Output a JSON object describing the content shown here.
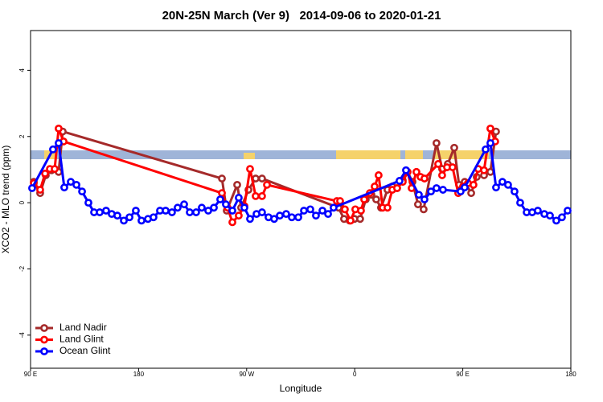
{
  "chart_data": {
    "type": "line",
    "title": "20N-25N March (Ver 9)   2014-09-06 to 2020-01-21",
    "x_label": "Longitude",
    "y_label": "XCO2 - MLO trend (ppm)",
    "xlim": [
      90,
      540
    ],
    "xticks": [
      {
        "value": 90,
        "label": "90 E"
      },
      180,
      {
        "value": 270,
        "label": "90 W"
      },
      {
        "value": 360,
        "label": "0"
      },
      {
        "value": 450,
        "label": "90 E"
      },
      {
        "value": 540,
        "label": "180"
      }
    ],
    "ylim": [
      -5,
      5.2
    ],
    "yticks": [
      -4,
      -2,
      0,
      2,
      4
    ],
    "legend": "bottom-left",
    "series": [
      {
        "name": "Land Nadir",
        "color": "#a52a2a",
        "x": [
          92.7,
          98.0,
          102.7,
          107.4,
          113.4,
          116.8,
          249.4,
          253.4,
          262.1,
          265.4,
          271.5,
          277.5,
          282.8,
          346.5,
          351.1,
          355.8,
          359.8,
          364.5,
          369.2,
          373.9,
          377.9,
          381.9,
          387.3,
          391.3,
          395.3,
          400.0,
          404.0,
          408.1,
          412.7,
          417.4,
          428.1,
          432.8,
          437.5,
          442.9,
          446.9,
          451.6,
          457.0,
          461.6,
          467.7,
          473.0,
          477.7
        ],
        "values": [
          0.63,
          0.29,
          0.83,
          0.98,
          0.93,
          2.15,
          0.73,
          -0.24,
          0.54,
          -0.15,
          0.39,
          0.73,
          0.73,
          -0.15,
          -0.49,
          -0.54,
          -0.49,
          -0.49,
          0.1,
          0.24,
          0.1,
          -0.15,
          0.39,
          0.49,
          0.44,
          0.68,
          0.93,
          0.63,
          -0.05,
          -0.2,
          1.8,
          1.02,
          1.17,
          1.66,
          0.54,
          0.63,
          0.29,
          0.78,
          0.83,
          0.93,
          2.15
        ]
      },
      {
        "name": "Land Glint",
        "color": "#ff0000",
        "x": [
          92.7,
          98.0,
          102.1,
          106.1,
          110.1,
          113.4,
          117.5,
          249.4,
          254.1,
          258.1,
          263.4,
          268.1,
          272.8,
          277.5,
          282.8,
          286.9,
          345.1,
          347.8,
          351.8,
          356.5,
          360.5,
          365.2,
          367.9,
          372.6,
          376.6,
          379.9,
          383.3,
          387.3,
          391.3,
          395.3,
          400.0,
          404.0,
          407.4,
          411.4,
          414.8,
          418.1,
          429.5,
          432.8,
          436.9,
          441.5,
          446.2,
          450.2,
          454.3,
          458.9,
          462.9,
          467.7,
          473.0,
          477.0
        ],
        "values": [
          0.59,
          0.39,
          0.88,
          1.02,
          1.02,
          2.24,
          1.85,
          0.29,
          -0.15,
          -0.59,
          -0.39,
          -0.1,
          1.02,
          0.2,
          0.2,
          0.54,
          0.05,
          0.05,
          -0.2,
          -0.54,
          -0.2,
          -0.24,
          0.1,
          0.29,
          0.49,
          0.83,
          -0.15,
          -0.15,
          0.39,
          0.44,
          0.63,
          0.93,
          0.44,
          0.93,
          0.78,
          0.73,
          1.17,
          0.83,
          1.07,
          1.07,
          0.29,
          0.49,
          0.59,
          0.54,
          1.02,
          0.98,
          2.24,
          1.85
        ]
      },
      {
        "name": "Ocean Glint",
        "color": "#0000ff",
        "x": [
          91.3,
          108.7,
          113.4,
          118.1,
          123.5,
          128.2,
          132.9,
          138.2,
          142.9,
          147.6,
          152.9,
          157.6,
          162.3,
          167.7,
          172.4,
          177.7,
          182.4,
          187.8,
          192.4,
          197.8,
          202.5,
          207.8,
          212.5,
          217.9,
          222.6,
          227.9,
          232.6,
          238.0,
          242.7,
          248.0,
          252.7,
          258.1,
          263.4,
          268.1,
          272.8,
          278.2,
          282.8,
          288.2,
          292.9,
          297.6,
          302.9,
          307.6,
          313.0,
          317.7,
          323.0,
          327.7,
          333.1,
          337.8,
          342.4,
          397.3,
          402.7,
          413.4,
          418.1,
          423.5,
          428.1,
          433.5,
          448.2,
          451.6,
          469.0,
          473.0,
          477.7,
          483.0,
          487.7,
          493.1,
          497.8,
          503.2,
          507.8,
          512.5,
          517.9,
          522.6,
          527.9,
          532.6,
          537.3
        ],
        "values": [
          0.44,
          1.61,
          1.8,
          0.46,
          0.63,
          0.54,
          0.34,
          0,
          -0.29,
          -0.29,
          -0.24,
          -0.34,
          -0.39,
          -0.54,
          -0.44,
          -0.24,
          -0.54,
          -0.49,
          -0.44,
          -0.24,
          -0.24,
          -0.29,
          -0.15,
          -0.05,
          -0.29,
          -0.29,
          -0.15,
          -0.24,
          -0.15,
          0.1,
          -0.05,
          -0.24,
          0.15,
          -0.15,
          -0.49,
          -0.34,
          -0.29,
          -0.44,
          -0.49,
          -0.39,
          -0.34,
          -0.44,
          -0.44,
          -0.24,
          -0.2,
          -0.39,
          -0.24,
          -0.34,
          -0.15,
          0.66,
          0.98,
          0.24,
          0.1,
          0.34,
          0.44,
          0.39,
          0.34,
          0.46,
          1.61,
          1.8,
          0.46,
          0.63,
          0.54,
          0.34,
          0,
          -0.29,
          -0.29,
          -0.24,
          -0.34,
          -0.39,
          -0.54,
          -0.44,
          -0.24
        ]
      }
    ]
  }
}
